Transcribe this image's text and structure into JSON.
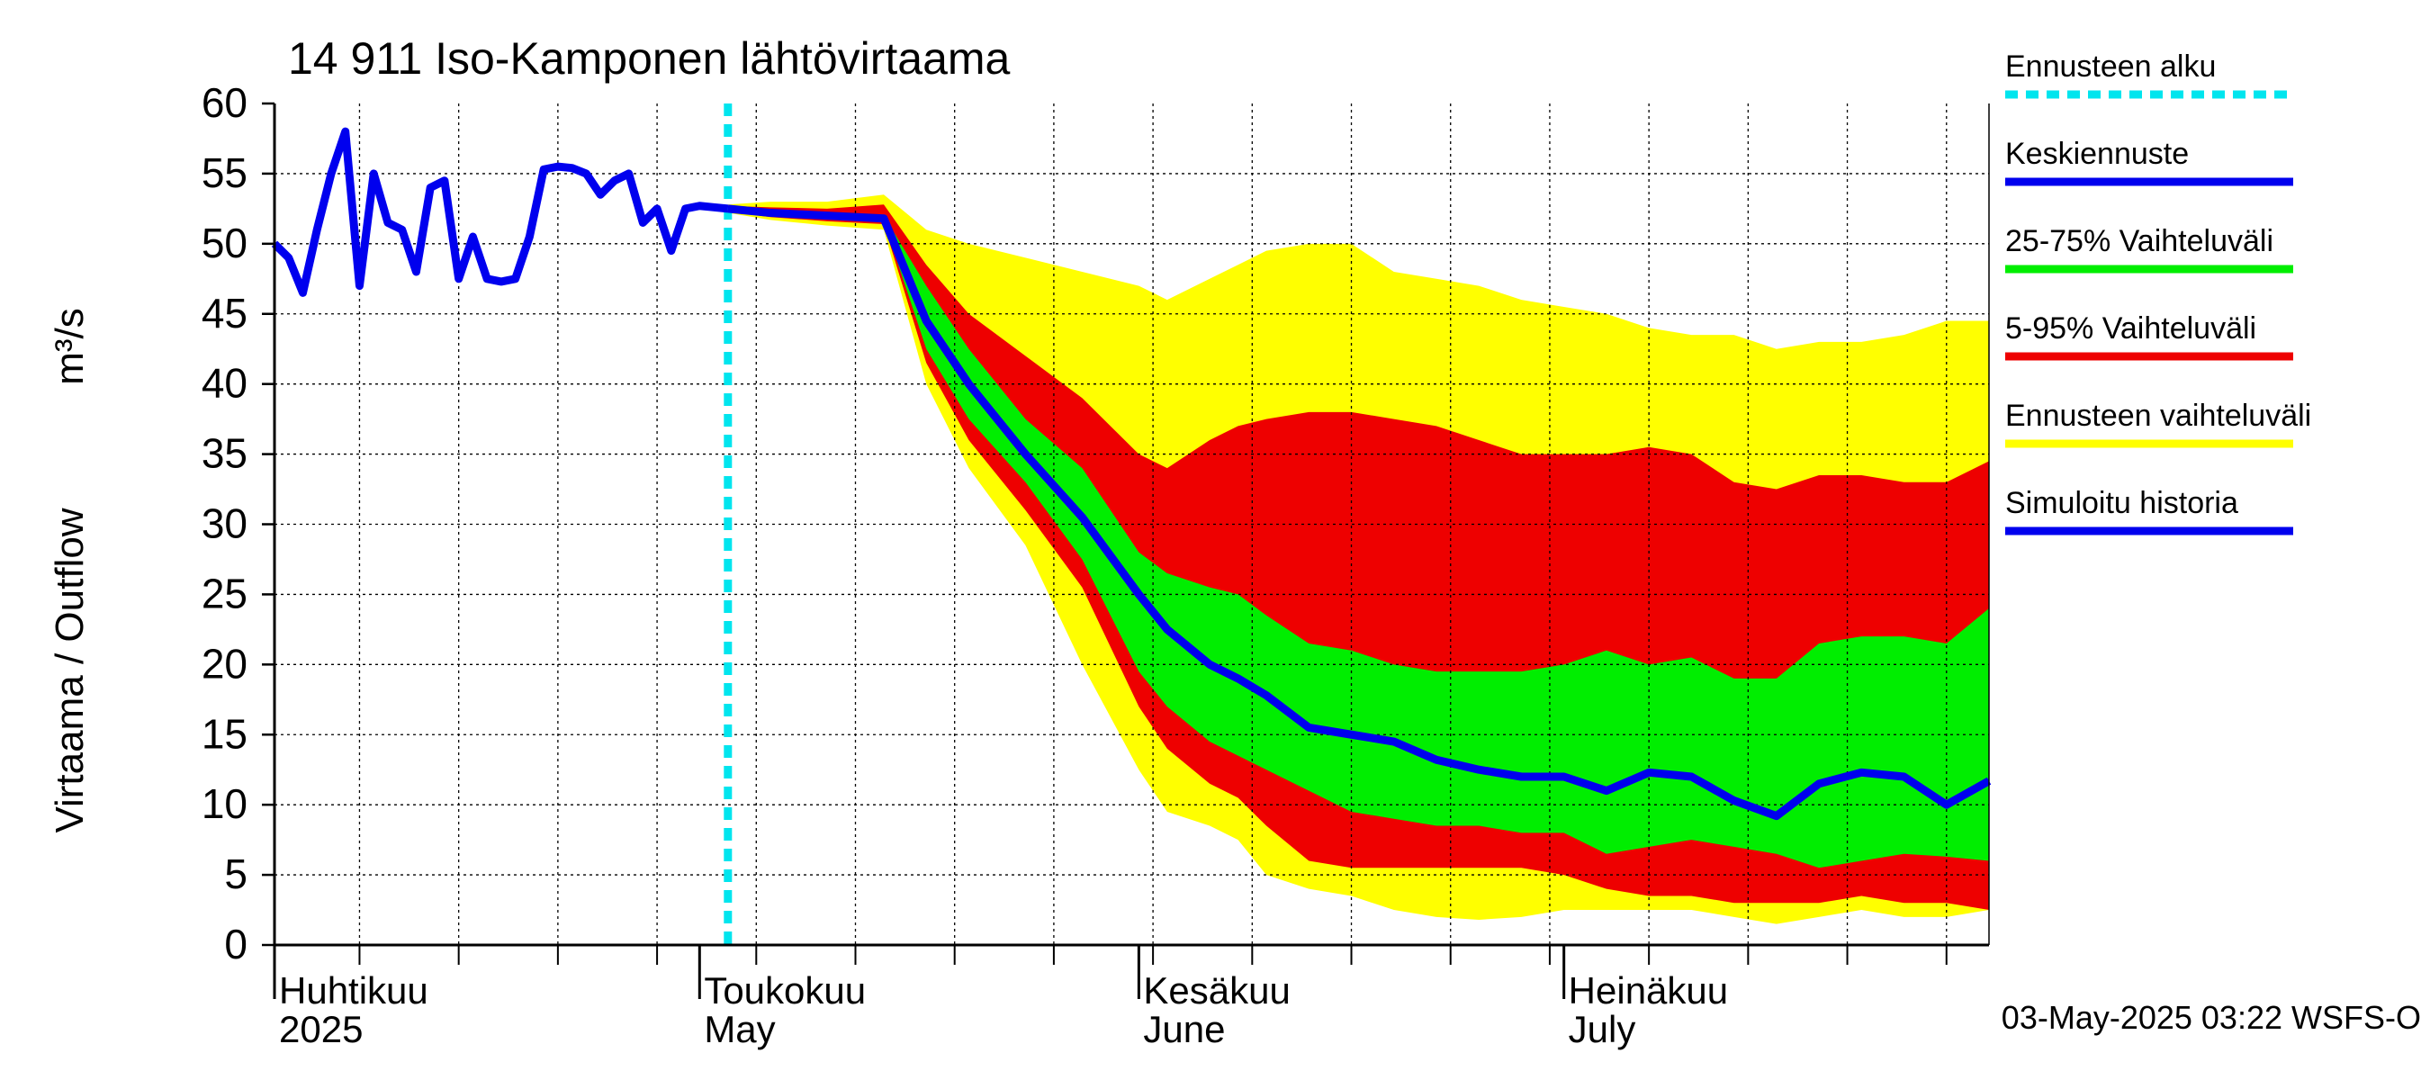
{
  "chart_data": {
    "type": "area",
    "title": "14 911 Iso-Kamponen lähtövirtaama",
    "ylabel_left": "Virtaama / Outflow",
    "ylabel_unit": "m³/s",
    "ylim": [
      0,
      60
    ],
    "yticks": [
      0,
      5,
      10,
      15,
      20,
      25,
      30,
      35,
      40,
      45,
      50,
      55,
      60
    ],
    "x_start": "2025-04-01",
    "x_end": "2025-07-31",
    "months": [
      {
        "date": "2025-04-01",
        "fi": "Huhtikuu",
        "en": "2025"
      },
      {
        "date": "2025-05-01",
        "fi": "Toukokuu",
        "en": "May"
      },
      {
        "date": "2025-06-01",
        "fi": "Kesäkuu",
        "en": "June"
      },
      {
        "date": "2025-07-01",
        "fi": "Heinäkuu",
        "en": "July"
      }
    ],
    "forecast_start": "2025-05-03",
    "footer": "03-May-2025 03:22 WSFS-O",
    "colors": {
      "forecast_start": "#00e5ee",
      "mean": "#0000ee",
      "band_25_75": "#00ee00",
      "band_5_95": "#ee0000",
      "band_range": "#ffff00",
      "history": "#0000ee"
    },
    "legend": [
      {
        "label": "Ennusteen alku",
        "key": "forecast_start",
        "style": "dashed"
      },
      {
        "label": "Keskiennuste",
        "key": "mean",
        "style": "solid"
      },
      {
        "label": "25-75% Vaihteluväli",
        "key": "band_25_75",
        "style": "solid"
      },
      {
        "label": "5-95% Vaihteluväli",
        "key": "band_5_95",
        "style": "solid"
      },
      {
        "label": "Ennusteen vaihteluväli",
        "key": "band_range",
        "style": "solid"
      },
      {
        "label": "Simuloitu historia",
        "key": "history",
        "style": "solid"
      }
    ],
    "history": {
      "x": [
        "2025-04-01",
        "2025-04-02",
        "2025-04-03",
        "2025-04-04",
        "2025-04-05",
        "2025-04-06",
        "2025-04-07",
        "2025-04-08",
        "2025-04-09",
        "2025-04-10",
        "2025-04-11",
        "2025-04-12",
        "2025-04-13",
        "2025-04-14",
        "2025-04-15",
        "2025-04-16",
        "2025-04-17",
        "2025-04-18",
        "2025-04-19",
        "2025-04-20",
        "2025-04-21",
        "2025-04-22",
        "2025-04-23",
        "2025-04-24",
        "2025-04-25",
        "2025-04-26",
        "2025-04-27",
        "2025-04-28",
        "2025-04-29",
        "2025-04-30",
        "2025-05-01",
        "2025-05-02",
        "2025-05-03"
      ],
      "y": [
        50,
        49,
        46.5,
        51,
        55,
        58,
        47,
        55,
        51.5,
        51,
        48,
        54,
        54.5,
        47.5,
        50.5,
        47.5,
        47.3,
        47.5,
        50.5,
        55.3,
        55.5,
        55.4,
        55,
        53.5,
        54.5,
        55,
        51.5,
        52.5,
        49.5,
        52.5,
        52.7,
        52.6,
        52.5
      ]
    },
    "forecast": {
      "x": [
        "2025-05-03",
        "2025-05-06",
        "2025-05-10",
        "2025-05-14",
        "2025-05-17",
        "2025-05-20",
        "2025-05-24",
        "2025-05-28",
        "2025-06-01",
        "2025-06-03",
        "2025-06-06",
        "2025-06-08",
        "2025-06-10",
        "2025-06-13",
        "2025-06-16",
        "2025-06-19",
        "2025-06-22",
        "2025-06-25",
        "2025-06-28",
        "2025-07-01",
        "2025-07-04",
        "2025-07-07",
        "2025-07-10",
        "2025-07-13",
        "2025-07-16",
        "2025-07-19",
        "2025-07-22",
        "2025-07-25",
        "2025-07-28",
        "2025-07-31"
      ],
      "mean": [
        52.5,
        52.2,
        52.0,
        51.8,
        44.5,
        40.0,
        35.0,
        30.5,
        25.0,
        22.5,
        20.0,
        19.0,
        17.8,
        15.5,
        15.0,
        14.5,
        13.2,
        12.5,
        12.0,
        12.0,
        11.0,
        12.3,
        12.0,
        10.3,
        9.2,
        11.5,
        12.3,
        12.0,
        10.0,
        11.7
      ],
      "p25": [
        52.4,
        52.0,
        51.8,
        51.6,
        42.5,
        37.5,
        33.0,
        27.5,
        19.5,
        17.0,
        14.5,
        13.5,
        12.5,
        11.0,
        9.5,
        9.0,
        8.5,
        8.5,
        8.0,
        8.0,
        6.5,
        7.0,
        7.5,
        7.0,
        6.5,
        5.5,
        6.0,
        6.5,
        6.3,
        6.0
      ],
      "p75": [
        52.6,
        52.4,
        52.2,
        52.0,
        47.0,
        42.5,
        37.5,
        34.0,
        28.0,
        26.5,
        25.5,
        25.0,
        23.5,
        21.5,
        21.0,
        20.0,
        19.5,
        19.5,
        19.5,
        20.0,
        21.0,
        20.0,
        20.5,
        19.0,
        19.0,
        21.5,
        22.0,
        22.0,
        21.5,
        24.0
      ],
      "p5": [
        52.3,
        51.9,
        51.6,
        51.4,
        41.5,
        36.0,
        31.0,
        25.5,
        17.0,
        14.0,
        11.5,
        10.5,
        8.5,
        6.0,
        5.5,
        5.5,
        5.5,
        5.5,
        5.5,
        5.0,
        4.0,
        3.5,
        3.5,
        3.0,
        3.0,
        3.0,
        3.5,
        3.0,
        3.0,
        2.5
      ],
      "p95": [
        52.7,
        52.6,
        52.5,
        52.8,
        48.5,
        45.0,
        42.0,
        39.0,
        35.0,
        34.0,
        36.0,
        37.0,
        37.5,
        38.0,
        38.0,
        37.5,
        37.0,
        36.0,
        35.0,
        35.0,
        35.0,
        35.5,
        35.0,
        33.0,
        32.5,
        33.5,
        33.5,
        33.0,
        33.0,
        34.5
      ],
      "min": [
        52.2,
        51.7,
        51.3,
        51.0,
        40.0,
        34.0,
        28.5,
        20.0,
        12.5,
        9.5,
        8.5,
        7.5,
        5.0,
        4.0,
        3.5,
        2.5,
        2.0,
        1.8,
        2.0,
        2.5,
        2.5,
        2.5,
        2.5,
        2.0,
        1.5,
        2.0,
        2.5,
        2.0,
        2.0,
        2.5
      ],
      "max": [
        52.8,
        53.0,
        53.0,
        53.5,
        51.0,
        50.0,
        49.0,
        48.0,
        47.0,
        46.0,
        47.5,
        48.5,
        49.5,
        50.0,
        50.0,
        48.0,
        47.5,
        47.0,
        46.0,
        45.5,
        45.0,
        44.0,
        43.5,
        43.5,
        42.5,
        43.0,
        43.0,
        43.5,
        44.5,
        44.5
      ]
    }
  }
}
